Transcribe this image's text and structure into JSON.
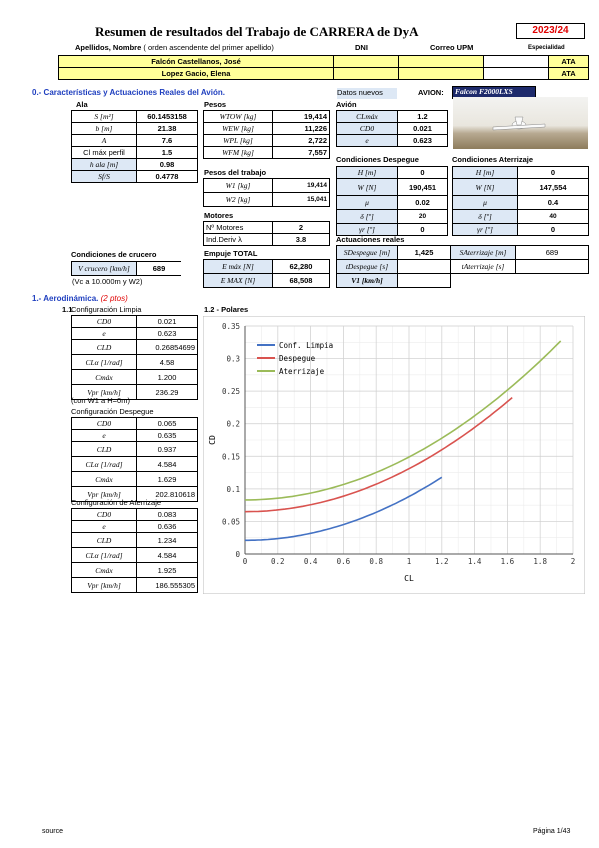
{
  "header": {
    "title": "Resumen de resultados del Trabajo de CARRERA de DyA",
    "year": "2023/24",
    "col_name": "Apellidos, Nombre",
    "col_name_note": "( orden ascendente del primer apellido)",
    "col_dni": "DNI",
    "col_mail": "Correo UPM",
    "col_spec": "Especialidad"
  },
  "students": [
    {
      "name": "Falcón Castellanos, José",
      "spec": "ATA"
    },
    {
      "name": "Lopez Gacio, Elena",
      "spec": "ATA"
    }
  ],
  "section0": {
    "title": "0.- Características y Actuaciones Reales del Avión.",
    "datos": "Datos nuevos",
    "avion_lbl": "AVION:",
    "avion": "Falcon F2000LXS"
  },
  "ala": {
    "title": "Ala",
    "rows": [
      [
        "S [m²]",
        "60.1453158"
      ],
      [
        "b [m]",
        "21.38"
      ],
      [
        "A",
        "7.6"
      ],
      [
        "Cl máx perfil",
        "1.5"
      ],
      [
        "h ala [m]",
        "0.98"
      ],
      [
        "Sf/S",
        "0.4778"
      ]
    ]
  },
  "pesos": {
    "title": "Pesos",
    "rows": [
      [
        "WTOW [kg]",
        "19,414"
      ],
      [
        "WEW [kg]",
        "11,226"
      ],
      [
        "WPL [kg]",
        "2,722"
      ],
      [
        "WFM [kg]",
        "7,557"
      ]
    ]
  },
  "pesos_trabajo": {
    "title": "Pesos del trabajo",
    "rows": [
      [
        "W1 [kg]",
        "19,414"
      ],
      [
        "W2 [kg]",
        "15,041"
      ]
    ]
  },
  "motores": {
    "title": "Motores",
    "rows": [
      [
        "Nº Motores",
        "2"
      ],
      [
        "Ind.Deriv λ",
        "3.8"
      ]
    ]
  },
  "empuje": {
    "title": "Empuje TOTAL",
    "rows": [
      [
        "E máx [N]",
        "62,280"
      ],
      [
        "E MAX [N]",
        "68,508"
      ]
    ]
  },
  "crucero": {
    "title": "Condiciones de crucero",
    "lab": "V crucero [km/h]",
    "val": "689",
    "note": "(Vc a 10.000m y W2)"
  },
  "avion_tab": {
    "title": "Avión",
    "rows": [
      [
        "CLmáx",
        "1.2"
      ],
      [
        "CD0",
        "0.021"
      ],
      [
        "e",
        "0.623"
      ]
    ]
  },
  "despegue": {
    "title": "Condiciones Despegue",
    "rows": [
      [
        "H [m]",
        "0"
      ],
      [
        "W [N]",
        "190,451"
      ],
      [
        "μ",
        "0.02"
      ],
      [
        "δ [º]",
        "20"
      ],
      [
        "γr [º]",
        "0"
      ]
    ]
  },
  "aterrizaje": {
    "title": "Condiciones Aterrizaje",
    "rows": [
      [
        "H [m]",
        "0"
      ],
      [
        "W [N]",
        "147,554"
      ],
      [
        "μ",
        "0.4"
      ],
      [
        "δ [º]",
        "40"
      ],
      [
        "γr [º]",
        "0"
      ]
    ]
  },
  "actuaciones": {
    "title": "Actuaciones reales",
    "r1": [
      "SDespegue [m]",
      "1,425",
      "SAterrizaje [m]",
      "689"
    ],
    "r2": [
      "tDespegue [s]",
      "",
      "tAterrizaje [s]",
      ""
    ],
    "r3": [
      "V1 [km/h]",
      ""
    ]
  },
  "section1": {
    "title": "1.- Aerodinámica.",
    "pts": "(2 ptos)",
    "sub11": "1.1",
    "sub12": "1.2 - Polares"
  },
  "conf_limpia": {
    "title": "Configuración Limpia",
    "rows": [
      [
        "CD0",
        "0.021"
      ],
      [
        "e",
        "0.623"
      ],
      [
        "CLD",
        "0.26854699"
      ],
      [
        "CLα [1/rad]",
        "4.58"
      ],
      [
        "Cmáx",
        "1.200"
      ],
      [
        "Vpr [km/h]",
        "236.29"
      ]
    ],
    "note": "(con W1 a H=0m)"
  },
  "conf_despegue": {
    "title": "Configuración Despegue",
    "rows": [
      [
        "CD0",
        "0.065"
      ],
      [
        "e",
        "0.635"
      ],
      [
        "CLD",
        "0.937"
      ],
      [
        "CLα [1/rad]",
        "4.584"
      ],
      [
        "Cmáx",
        "1.629"
      ],
      [
        "Vpr [km/h]",
        "202.810618"
      ]
    ]
  },
  "conf_aterrizaje": {
    "title": "Configuración de Aterrizaje",
    "rows": [
      [
        "CD0",
        "0.083"
      ],
      [
        "e",
        "0.636"
      ],
      [
        "CLD",
        "1.234"
      ],
      [
        "CLα [1/rad]",
        "4.584"
      ],
      [
        "Cmáx",
        "1.925"
      ],
      [
        "Vpr [km/h]",
        "186.555305"
      ]
    ]
  },
  "chart_data": {
    "type": "line",
    "xlabel": "CL",
    "ylabel": "CD",
    "xlim": [
      0,
      2
    ],
    "ylim": [
      0,
      0.35
    ],
    "xticks": [
      "0",
      "0.2",
      "0.4",
      "0.6",
      "0.8",
      "1",
      "1.2",
      "1.4",
      "1.6",
      "1.8",
      "2"
    ],
    "yticks": [
      "0",
      "0.05",
      "0.1",
      "0.15",
      "0.2",
      "0.25",
      "0.3",
      "0.35"
    ],
    "legend": "top-left",
    "grid": true,
    "series": [
      {
        "name": "Conf. Limpia",
        "color": "#4472c4",
        "cd0": 0.021,
        "e": 0.623,
        "A": 7.6,
        "xmax": 1.2
      },
      {
        "name": "Despegue",
        "color": "#d9534f",
        "cd0": 0.065,
        "e": 0.635,
        "A": 7.6,
        "xmax": 1.629
      },
      {
        "name": "Aterrizaje",
        "color": "#9bbb59",
        "cd0": 0.083,
        "e": 0.636,
        "A": 7.6,
        "xmax": 1.925
      }
    ]
  },
  "footer": {
    "left": "source",
    "right": "Página 1/43"
  }
}
